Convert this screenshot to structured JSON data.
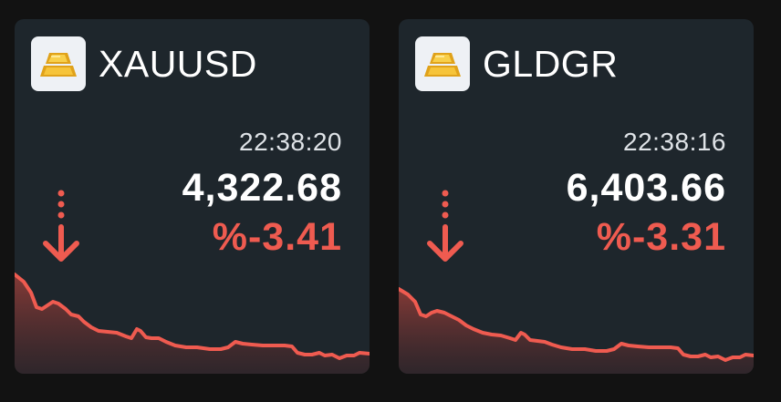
{
  "tickers": [
    {
      "symbol": "XAUUSD",
      "time": "22:38:20",
      "price": "4,322.68",
      "change": "%-3.41",
      "trend_icon": "down-arrow-icon",
      "logo_icon": "gold-bars-icon",
      "colors": {
        "down": "#ef5b50",
        "price": "#ffffff",
        "card": "#1e262c"
      }
    },
    {
      "symbol": "GLDGR",
      "time": "22:38:16",
      "price": "6,403.66",
      "change": "%-3.31",
      "trend_icon": "down-arrow-icon",
      "logo_icon": "gold-bars-icon",
      "colors": {
        "down": "#ef5b50",
        "price": "#ffffff",
        "card": "#1e262c"
      }
    }
  ]
}
